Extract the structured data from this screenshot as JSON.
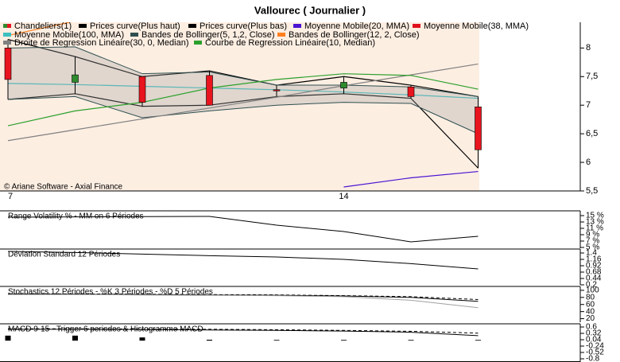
{
  "chart_data": [
    {
      "type": "candlestick",
      "title": "Vallourec  ( Journalier )",
      "note": "© Ariane Software - Axial Finance",
      "categories": [
        "7",
        null,
        null,
        null,
        null,
        "14",
        null,
        null
      ],
      "candles": {
        "name": "Chandeliers(1)",
        "up_color": "#2e8b2e",
        "down_color": "#e8141e",
        "open": [
          8.0,
          7.4,
          7.5,
          7.52,
          7.27,
          7.3,
          7.32,
          6.97
        ],
        "high": [
          8.15,
          7.85,
          7.5,
          7.6,
          7.35,
          7.5,
          7.35,
          7.15
        ],
        "low": [
          7.1,
          7.2,
          6.98,
          7.0,
          7.15,
          7.2,
          7.12,
          5.9
        ],
        "close": [
          7.45,
          7.53,
          7.05,
          7.0,
          7.25,
          7.4,
          7.15,
          6.22
        ]
      },
      "series": [
        {
          "name": "Prices curve(Plus haut)",
          "color": "#000000",
          "values": [
            8.15,
            7.85,
            7.5,
            7.6,
            7.35,
            7.5,
            7.35,
            7.15
          ]
        },
        {
          "name": "Prices curve(Plus bas)",
          "color": "#000000",
          "values": [
            7.1,
            7.2,
            6.98,
            7.0,
            7.15,
            7.2,
            7.12,
            5.9
          ]
        },
        {
          "name": "Moyenne Mobile(20, MMA)",
          "color": "#4b14d2",
          "values": [
            null,
            null,
            null,
            null,
            null,
            5.57,
            5.73,
            5.84
          ]
        },
        {
          "name": "Moyenne Mobile(38, MMA)",
          "color": "#e0101e",
          "values": [
            null,
            null,
            null,
            null,
            null,
            null,
            null,
            null
          ]
        },
        {
          "name": "Moyenne Mobile(100, MMA)",
          "color": "#3cc0c0",
          "values": [
            7.38,
            7.36,
            7.33,
            7.3,
            7.27,
            7.23,
            7.18,
            7.12
          ]
        },
        {
          "name": "Bandes de Bollinger(5, 1,2, Close)",
          "color": "#2f4f4f",
          "band": true,
          "upper": [
            8.0,
            8.02,
            7.55,
            7.58,
            7.35,
            7.35,
            7.32,
            7.15
          ],
          "lower": [
            7.1,
            7.15,
            6.78,
            6.9,
            7.0,
            7.05,
            7.03,
            6.5
          ]
        },
        {
          "name": "Bandes de Bollinger(12, 2, Close)",
          "color": "#ff8020",
          "values": [
            8.22,
            8.47,
            null,
            null,
            null,
            null,
            null,
            null
          ]
        },
        {
          "name": "Droite de Regression Linéaire(30, 0, Median)",
          "color": "#808080",
          "values": [
            6.38,
            6.57,
            6.76,
            6.95,
            7.14,
            7.34,
            7.53,
            7.72
          ]
        },
        {
          "name": "Courbe de Regression Linéaire(10, Median)",
          "color": "#2ca02c",
          "values": [
            6.64,
            6.9,
            7.05,
            7.3,
            7.45,
            7.55,
            7.52,
            7.28
          ]
        }
      ],
      "ylim": [
        5.5,
        8.45
      ],
      "yticks": [
        {
          "value": 5.5,
          "label": "5,5"
        },
        6,
        {
          "value": 6.5,
          "label": "6,5"
        },
        7,
        {
          "value": 7.5,
          "label": "7,5"
        },
        8
      ]
    },
    {
      "type": "line",
      "title": "Range Volatility % - MM on 6 Périodes",
      "series": [
        {
          "color": "#000000",
          "values": [
            14.5,
            14.6,
            14.7,
            14.75,
            12,
            10,
            6.75,
            8.5
          ]
        }
      ],
      "ylim": [
        4.75,
        16.5
      ],
      "yticks": [
        {
          "value": 5,
          "label": "5 %"
        },
        {
          "value": 7,
          "label": "7 %"
        },
        {
          "value": 9,
          "label": "9 %"
        },
        {
          "value": 11,
          "label": "11 %"
        },
        {
          "value": 13,
          "label": "13 %"
        },
        {
          "value": 15,
          "label": "15 %"
        }
      ]
    },
    {
      "type": "line",
      "title": "Déviation Standard 12 Périodes",
      "series": [
        {
          "color": "#000000",
          "values": [
            1.46,
            1.42,
            1.36,
            1.3,
            1.25,
            1.16,
            1.0,
            0.8
          ]
        }
      ],
      "ylim": [
        0.2,
        1.55
      ],
      "yticks": [
        0.2,
        0.44,
        0.68,
        0.92,
        1.16,
        1.4
      ]
    },
    {
      "type": "line",
      "title": "Stochastics 12 Périodes - %K 3 Périodes - %D 5 Périodes",
      "series": [
        {
          "color": "#000000",
          "values": [
            89,
            89,
            88,
            87,
            86,
            84,
            80,
            69
          ]
        },
        {
          "color": "#000000",
          "dashed": true,
          "values": [
            90,
            90,
            89,
            88,
            87,
            85,
            82,
            74
          ]
        },
        {
          "color": "#a0a0a0",
          "values": [
            88,
            88,
            87,
            86,
            85,
            82,
            72,
            51
          ]
        }
      ],
      "ylim": [
        10,
        111
      ],
      "yticks": [
        20,
        40,
        60,
        80,
        100
      ]
    },
    {
      "type": "line",
      "title": "MACD 9-15 - Trigger 6 periodes & Histogramme MACD",
      "series": [
        {
          "color": "#000000",
          "values": [
            0.5,
            0.5,
            0.49,
            0.47,
            0.45,
            0.42,
            0.37,
            0.22
          ]
        },
        {
          "color": "#000000",
          "dashed": true,
          "values": [
            0.52,
            0.52,
            0.51,
            0.5,
            0.48,
            0.45,
            0.41,
            0.33
          ]
        }
      ],
      "histogram": {
        "color": "#000000",
        "values": [
          0.22,
          0.22,
          0.14,
          0.04,
          0.03,
          0.03,
          0.03,
          0.03
        ]
      },
      "ylim": [
        -0.94,
        0.74
      ],
      "yticks": [
        -0.8,
        -0.52,
        -0.24,
        0.04,
        0.32,
        0.6
      ]
    }
  ]
}
